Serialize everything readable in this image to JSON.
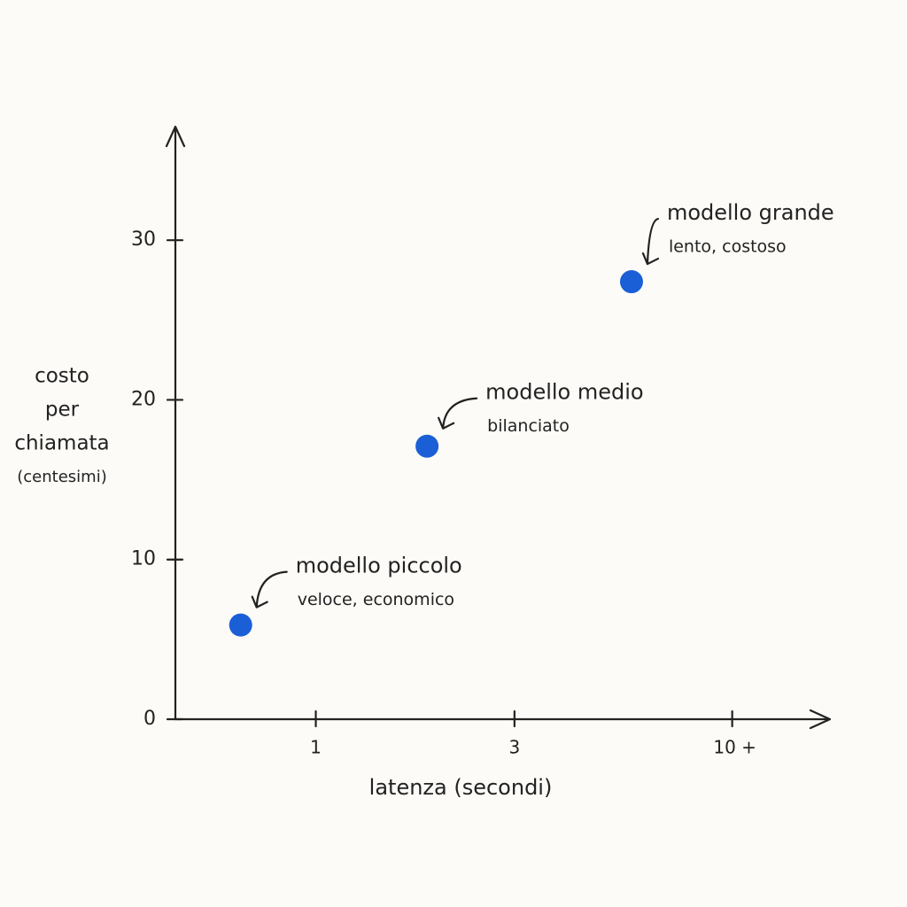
{
  "chart_data": {
    "type": "scatter",
    "xlabel": "latenza (secondi)",
    "ylabel": [
      "costo",
      "per",
      "chiamata",
      "(centesimi)"
    ],
    "xscale": "log",
    "xlim": [
      0.46,
      17
    ],
    "xticks": [
      1,
      3,
      {
        "value": 10,
        "label": "10 +"
      }
    ],
    "ylim": [
      0,
      37
    ],
    "yticks": [
      0,
      10,
      20,
      30
    ],
    "color": "#1a5fd6",
    "x": [
      0.66,
      1.85,
      5.73
    ],
    "values": [
      5.9,
      17.1,
      27.4
    ],
    "point_labels": [
      "modello piccolo",
      "modello medio",
      "modello grande"
    ],
    "point_notes": [
      "veloce, economico",
      "bilanciato",
      "lento, costoso"
    ]
  }
}
